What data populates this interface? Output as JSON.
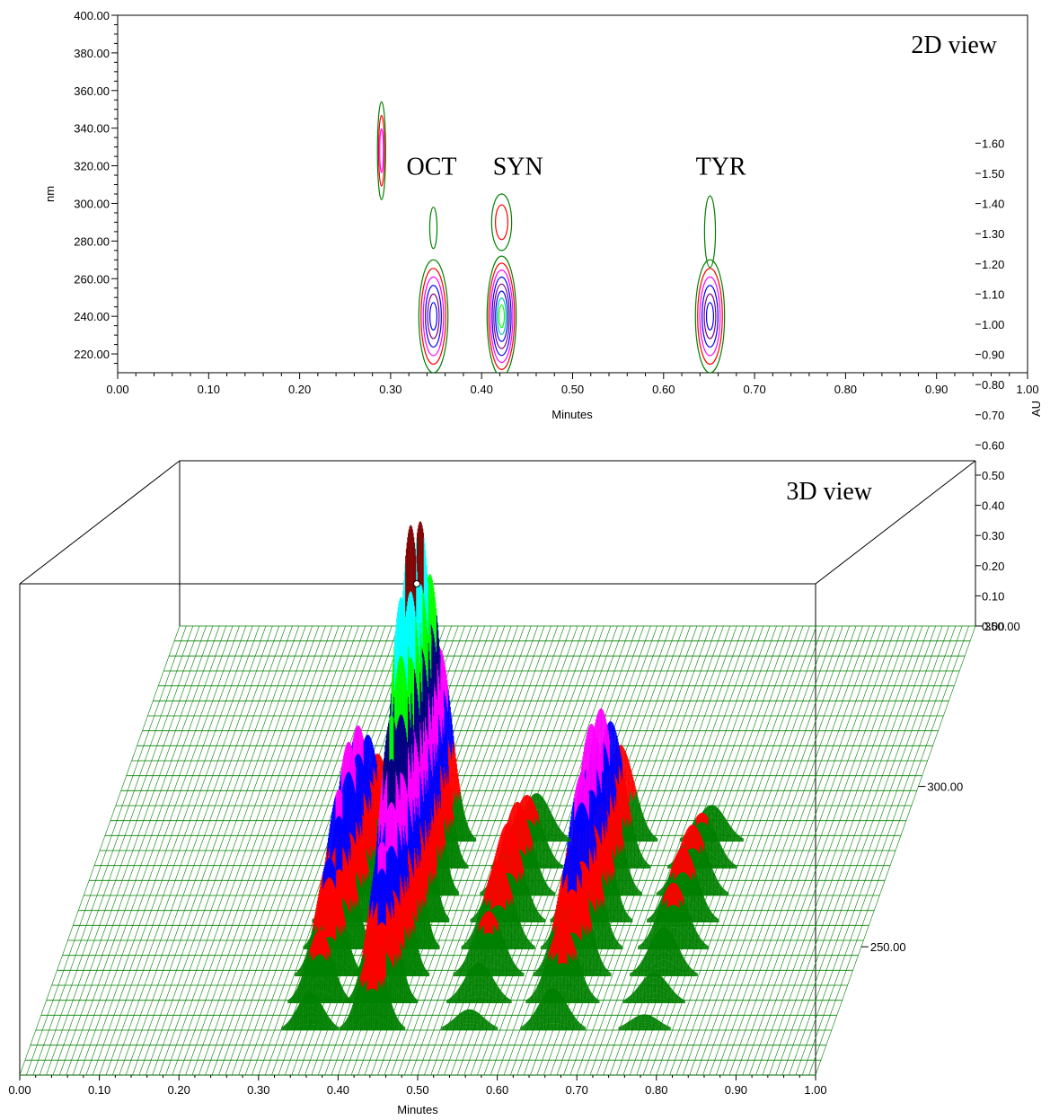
{
  "chart_data": [
    {
      "type": "contour",
      "panel_label": "2D view",
      "xlabel": "Minutes",
      "ylabel": "nm",
      "xlim": [
        0.0,
        1.0
      ],
      "ylim": [
        210.0,
        400.0
      ],
      "x_ticks": [
        "0.00",
        "0.10",
        "0.20",
        "0.30",
        "0.40",
        "0.50",
        "0.60",
        "0.70",
        "0.80",
        "0.90",
        "1.00"
      ],
      "y_ticks": [
        "220.00",
        "240.00",
        "260.00",
        "280.00",
        "300.00",
        "320.00",
        "340.00",
        "360.00",
        "380.00",
        "400.00"
      ],
      "annotations": [
        {
          "text": "OCT",
          "x": 0.345,
          "y": 320
        },
        {
          "text": "SYN",
          "x": 0.44,
          "y": 320
        },
        {
          "text": "TYR",
          "x": 0.663,
          "y": 320
        }
      ],
      "contour_colors": [
        "#008000",
        "#ff0000",
        "#ff00ff",
        "#0000ff",
        "#00c0c0",
        "#00ff00"
      ],
      "peaks": [
        {
          "x": 0.29,
          "y": 328,
          "dx": 0.0045,
          "dy": 26,
          "levels": 3
        },
        {
          "x": 0.347,
          "y": 287,
          "dx": 0.004,
          "dy": 11,
          "levels": 1
        },
        {
          "x": 0.347,
          "y": 240,
          "dx": 0.016,
          "dy": 30,
          "levels": 6
        },
        {
          "x": 0.422,
          "y": 290,
          "dx": 0.011,
          "dy": 15,
          "levels": 2
        },
        {
          "x": 0.422,
          "y": 240,
          "dx": 0.016,
          "dy": 32,
          "levels": 8
        },
        {
          "x": 0.651,
          "y": 285,
          "dx": 0.006,
          "dy": 19,
          "levels": 1
        },
        {
          "x": 0.651,
          "y": 240,
          "dx": 0.016,
          "dy": 30,
          "levels": 6
        }
      ]
    },
    {
      "type": "surface3d",
      "panel_label": "3D view",
      "xlabel": "Minutes",
      "zlabel": "AU",
      "xlim": [
        0.0,
        1.0
      ],
      "zlim": [
        0.0,
        1.6
      ],
      "depth_range": [
        210.0,
        350.0
      ],
      "x_ticks": [
        "0.00",
        "0.10",
        "0.20",
        "0.30",
        "0.40",
        "0.50",
        "0.60",
        "0.70",
        "0.80",
        "0.90",
        "1.00"
      ],
      "z_ticks": [
        "0.00",
        "0.10",
        "0.20",
        "0.30",
        "0.40",
        "0.50",
        "0.60",
        "0.70",
        "0.80",
        "0.90",
        "1.00",
        "1.10",
        "1.20",
        "1.30",
        "1.40",
        "1.50",
        "1.60"
      ],
      "depth_ticks": [
        "250.00",
        "300.00",
        "350.00"
      ],
      "band_colors": [
        "#008000",
        "#ff0000",
        "#0000ff",
        "#ff00ff",
        "#000080",
        "#00ff00",
        "#00ffff",
        "#800000"
      ],
      "peaks": [
        {
          "x": 0.345,
          "h": 0.6,
          "w": 0.016
        },
        {
          "x": 0.423,
          "h": 1.32,
          "w": 0.016
        },
        {
          "x": 0.65,
          "h": 0.66,
          "w": 0.018
        },
        {
          "x": 0.545,
          "h": 0.33,
          "w": 0.018
        },
        {
          "x": 0.765,
          "h": 0.25,
          "w": 0.018
        }
      ]
    }
  ]
}
